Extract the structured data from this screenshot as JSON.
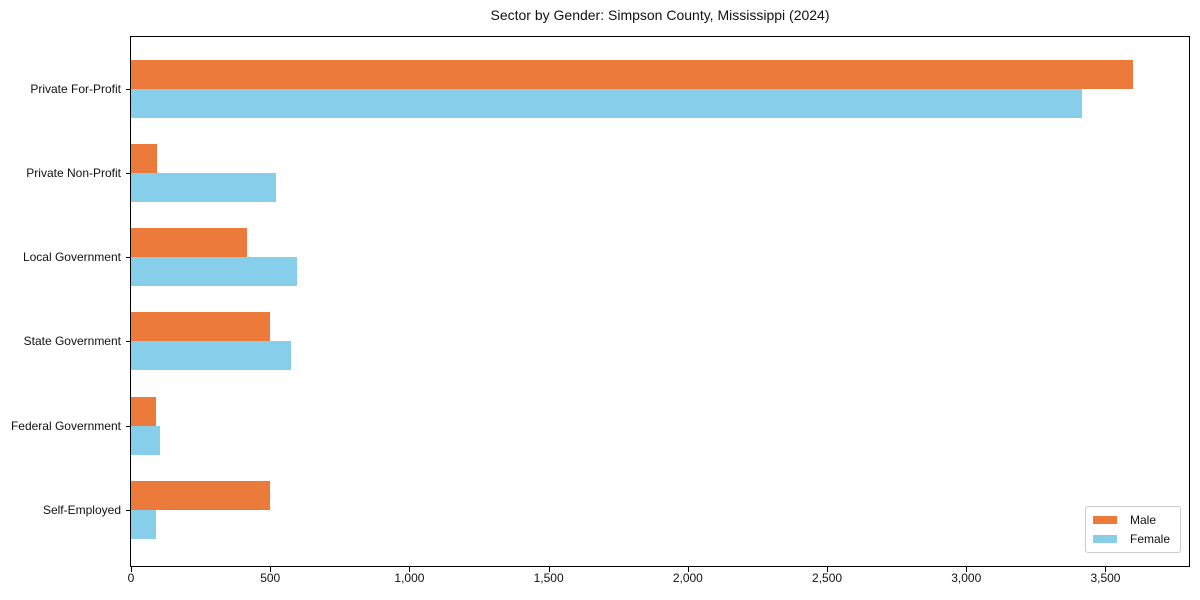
{
  "chart_data": {
    "type": "bar",
    "orientation": "horizontal",
    "title": "Sector by Gender: Simpson County, Mississippi (2024)",
    "categories": [
      "Private For-Profit",
      "Private Non-Profit",
      "Local Government",
      "State Government",
      "Federal Government",
      "Self-Employed"
    ],
    "series": [
      {
        "name": "Male",
        "color": "#EB7A3B",
        "values": [
          3600,
          95,
          415,
          500,
          90,
          500
        ]
      },
      {
        "name": "Female",
        "color": "#87CEEB",
        "values": [
          3415,
          520,
          595,
          575,
          105,
          90
        ]
      }
    ],
    "xlabel": "",
    "ylabel": "",
    "xlim": [
      0,
      3800
    ],
    "xticks": [
      0,
      500,
      1000,
      1500,
      2000,
      2500,
      3000,
      3500
    ],
    "xtick_labels": [
      "0",
      "500",
      "1,000",
      "1,500",
      "2,000",
      "2,500",
      "3,000",
      "3,500"
    ],
    "grid": false,
    "legend": {
      "position": "lower right",
      "entries": [
        "Male",
        "Female"
      ]
    }
  }
}
